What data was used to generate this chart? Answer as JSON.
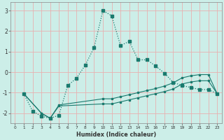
{
  "xlabel": "Humidex (Indice chaleur)",
  "bg_color": "#cceee8",
  "grid_color": "#e8b0b0",
  "line_color": "#1a7a6e",
  "xlim": [
    -0.5,
    23.5
  ],
  "ylim": [
    -2.5,
    3.4
  ],
  "xticks": [
    0,
    1,
    2,
    3,
    4,
    5,
    6,
    7,
    8,
    9,
    10,
    11,
    12,
    13,
    14,
    15,
    16,
    17,
    18,
    19,
    20,
    21,
    22,
    23
  ],
  "yticks": [
    -2,
    -1,
    0,
    1,
    2,
    3
  ],
  "line1_x": [
    1,
    2,
    3,
    4,
    5,
    6,
    7,
    8,
    9,
    10,
    11,
    12,
    13,
    14,
    15,
    16,
    17,
    18,
    19,
    20,
    21,
    22,
    23
  ],
  "line1_y": [
    -1.05,
    -1.9,
    -2.15,
    -2.25,
    -2.1,
    -0.65,
    -0.3,
    0.35,
    1.2,
    3.0,
    2.75,
    1.3,
    1.5,
    0.6,
    0.6,
    0.3,
    -0.05,
    -0.5,
    -0.65,
    -0.75,
    -0.85,
    -0.85,
    -1.05
  ],
  "band_top_x": [
    1,
    3,
    4,
    5,
    10,
    11,
    12,
    13,
    14,
    15,
    16,
    17,
    18,
    19,
    20,
    21,
    22,
    23
  ],
  "band_top_y": [
    -1.05,
    -2.0,
    -2.25,
    -1.6,
    -1.3,
    -1.3,
    -1.2,
    -1.1,
    -1.0,
    -0.9,
    -0.8,
    -0.68,
    -0.52,
    -0.28,
    -0.18,
    -0.12,
    -0.12,
    -1.05
  ],
  "band_bot_x": [
    1,
    3,
    4,
    5,
    10,
    11,
    12,
    13,
    14,
    15,
    16,
    17,
    18,
    19,
    20,
    21,
    22,
    23
  ],
  "band_bot_y": [
    -1.05,
    -2.0,
    -2.25,
    -1.65,
    -1.55,
    -1.55,
    -1.45,
    -1.35,
    -1.25,
    -1.15,
    -1.05,
    -0.95,
    -0.82,
    -0.58,
    -0.48,
    -0.42,
    -0.42,
    -1.05
  ]
}
